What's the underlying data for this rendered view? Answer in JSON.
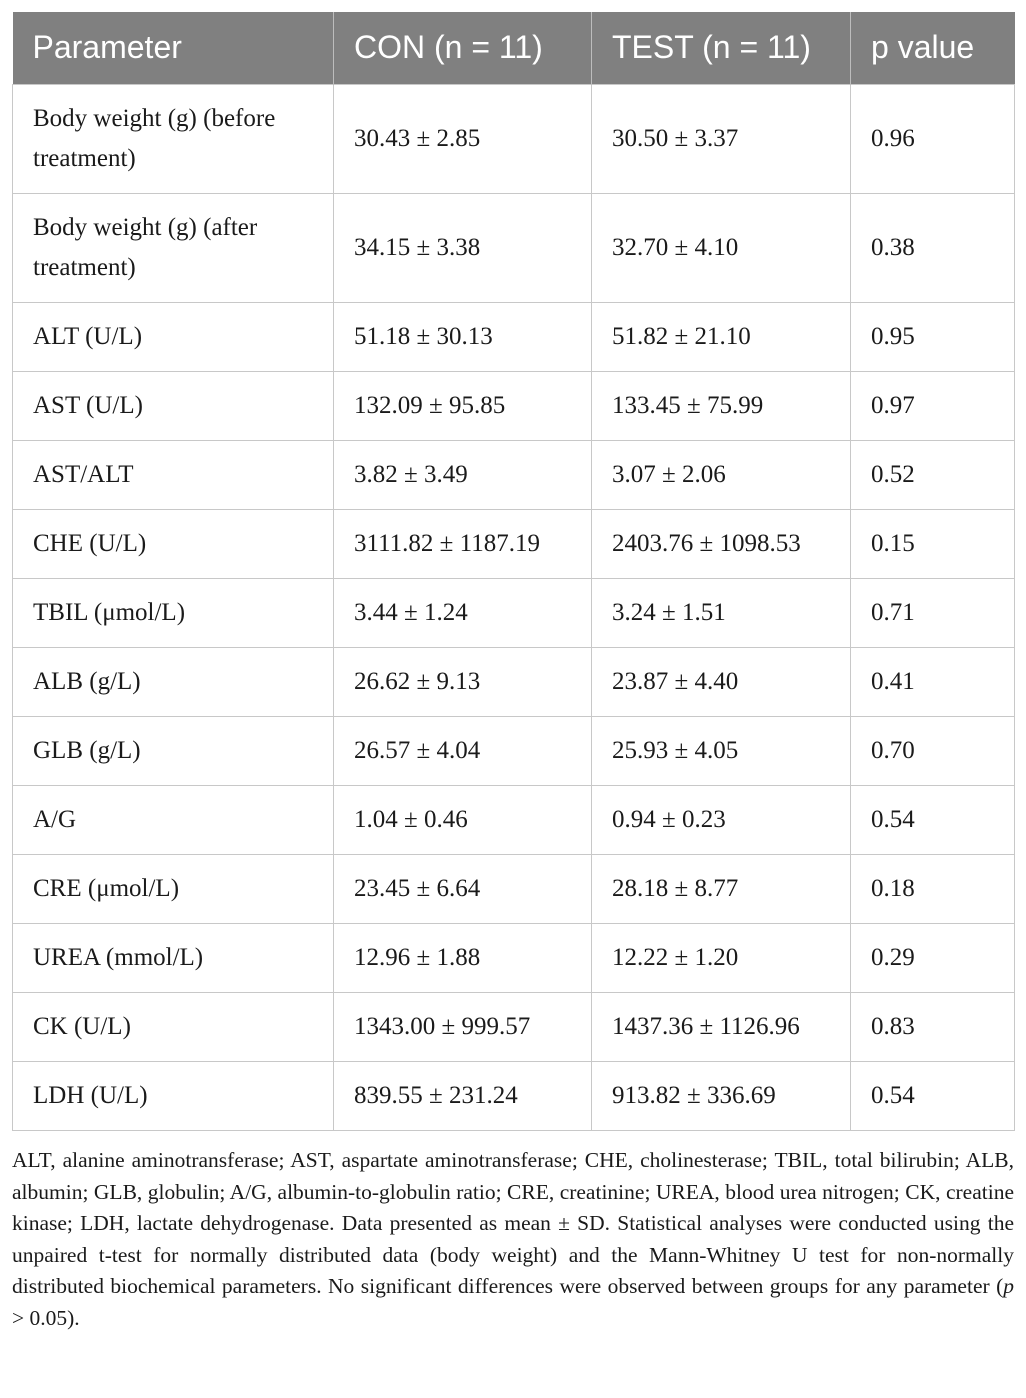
{
  "table": {
    "headers": [
      "Parameter",
      "CON (n = 11)",
      "TEST (n = 11)",
      "p value"
    ],
    "rows": [
      {
        "parameter": "Body weight (g) (before treatment)",
        "con": "30.43 ± 2.85",
        "test": "30.50 ± 3.37",
        "p": "0.96"
      },
      {
        "parameter": "Body weight (g) (after treatment)",
        "con": "34.15 ± 3.38",
        "test": "32.70 ± 4.10",
        "p": "0.38"
      },
      {
        "parameter": "ALT (U/L)",
        "con": "51.18 ± 30.13",
        "test": "51.82 ± 21.10",
        "p": "0.95"
      },
      {
        "parameter": "AST (U/L)",
        "con": "132.09 ± 95.85",
        "test": "133.45 ± 75.99",
        "p": "0.97"
      },
      {
        "parameter": "AST/ALT",
        "con": "3.82 ± 3.49",
        "test": "3.07 ± 2.06",
        "p": "0.52"
      },
      {
        "parameter": "CHE (U/L)",
        "con": "3111.82 ± 1187.19",
        "test": "2403.76 ± 1098.53",
        "p": "0.15"
      },
      {
        "parameter": "TBIL (μmol/L)",
        "con": "3.44 ± 1.24",
        "test": "3.24 ± 1.51",
        "p": "0.71"
      },
      {
        "parameter": "ALB (g/L)",
        "con": "26.62 ± 9.13",
        "test": "23.87 ± 4.40",
        "p": "0.41"
      },
      {
        "parameter": "GLB (g/L)",
        "con": "26.57 ± 4.04",
        "test": "25.93 ± 4.05",
        "p": "0.70"
      },
      {
        "parameter": "A/G",
        "con": "1.04 ± 0.46",
        "test": "0.94 ± 0.23",
        "p": "0.54"
      },
      {
        "parameter": "CRE (μmol/L)",
        "con": "23.45 ± 6.64",
        "test": "28.18 ± 8.77",
        "p": "0.18"
      },
      {
        "parameter": "UREA (mmol/L)",
        "con": "12.96 ± 1.88",
        "test": "12.22 ± 1.20",
        "p": "0.29"
      },
      {
        "parameter": "CK (U/L)",
        "con": "1343.00 ± 999.57",
        "test": "1437.36 ± 1126.96",
        "p": "0.83"
      },
      {
        "parameter": "LDH (U/L)",
        "con": "839.55 ± 231.24",
        "test": "913.82 ± 336.69",
        "p": "0.54"
      }
    ]
  },
  "footnote": {
    "text_main": "ALT, alanine aminotransferase; AST, aspartate aminotransferase; CHE, cholinesterase; TBIL, total bilirubin; ALB, albumin; GLB, globulin; A/G, albumin-to-globulin ratio; CRE, creatinine; UREA, blood urea nitrogen; CK, creatine kinase; LDH, lactate dehydrogenase. Data presented as mean ± SD. Statistical analyses were conducted using the unpaired t-test for normally distributed data (body weight) and the Mann-Whitney U test for non-normally distributed biochemical parameters. No significant differences were observed between groups for any parameter (",
    "p_symbol": "p",
    "text_end": " > 0.05)."
  }
}
